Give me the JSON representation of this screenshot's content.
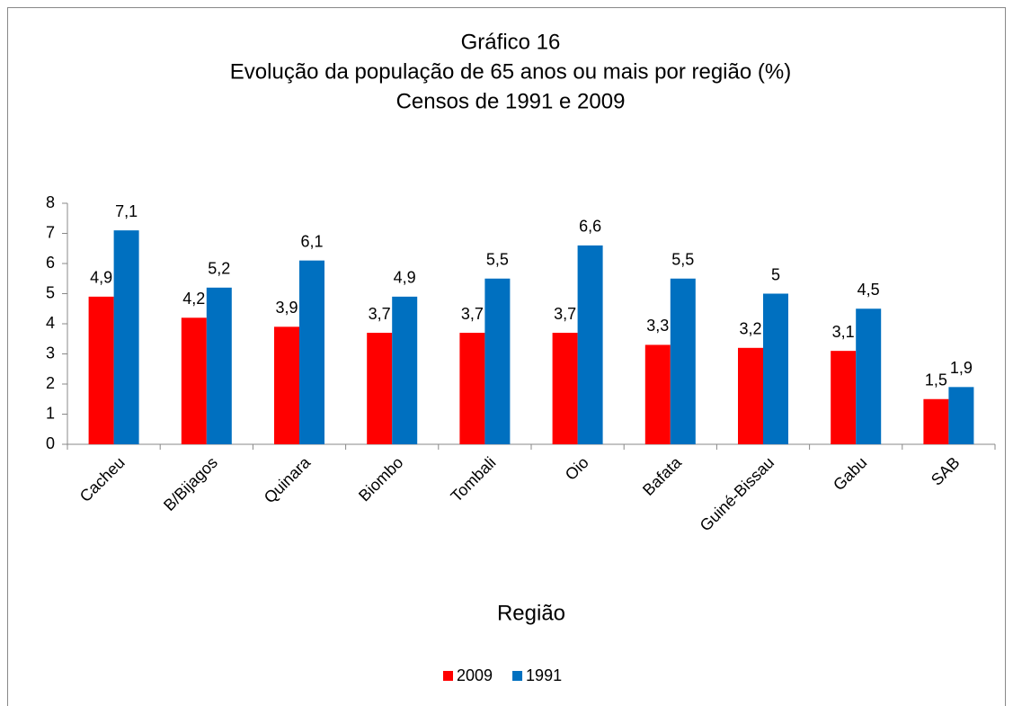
{
  "chart_data": {
    "type": "bar",
    "title": [
      "Gráfico 16",
      "Evolução da população de 65 anos ou mais por região (%)",
      "Censos de 1991 e 2009"
    ],
    "x_label": "Região",
    "categories": [
      "Cacheu",
      "B/Bijagos",
      "Quinara",
      "Biombo",
      "Tombali",
      "Oio",
      "Bafata",
      "Guiné-Bissau",
      "Gabu",
      "SAB"
    ],
    "series": [
      {
        "name": "2009",
        "color": "#ff0000",
        "values": [
          4.9,
          4.2,
          3.9,
          3.7,
          3.7,
          3.7,
          3.3,
          3.2,
          3.1,
          1.5
        ],
        "value_labels": [
          "4,9",
          "4,2",
          "3,9",
          "3,7",
          "3,7",
          "3,7",
          "3,3",
          "3,2",
          "3,1",
          "1,5"
        ]
      },
      {
        "name": "1991",
        "color": "#0070c0",
        "values": [
          7.1,
          5.2,
          6.1,
          4.9,
          5.5,
          6.6,
          5.5,
          5,
          4.5,
          1.9
        ],
        "value_labels": [
          "7,1",
          "5,2",
          "6,1",
          "4,9",
          "5,5",
          "6,6",
          "5,5",
          "5",
          "4,5",
          "1,9"
        ]
      }
    ],
    "ylim": [
      0,
      8
    ],
    "yticks": [
      0,
      1,
      2,
      3,
      4,
      5,
      6,
      7,
      8
    ],
    "grid": false,
    "legend": "bottom"
  }
}
